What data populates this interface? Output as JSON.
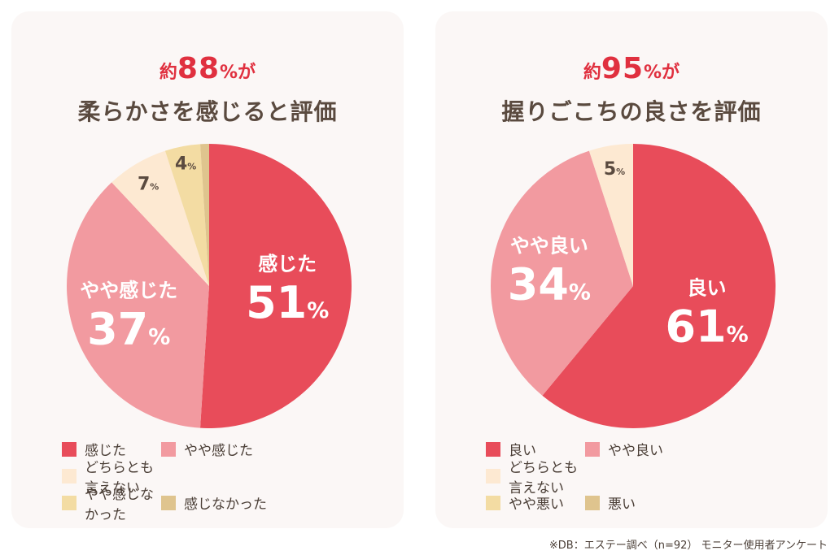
{
  "charts": [
    {
      "id": "left",
      "title_prefix": "約",
      "title_number": "88",
      "title_percent": "%",
      "title_suffix": "が",
      "subtitle": "柔らかさを感じると評価",
      "slice_labels": [
        "感じた",
        "やや感じた",
        "",
        "",
        ""
      ],
      "pct_labels": [
        "51%",
        "37%",
        "7%",
        "4%",
        ""
      ],
      "legend_rows": [
        [
          0,
          1
        ],
        [
          2
        ],
        [
          3,
          4
        ]
      ]
    },
    {
      "id": "right",
      "title_prefix": "約",
      "title_number": "95",
      "title_percent": "%",
      "title_suffix": "が",
      "subtitle": "握りごこちの良さを評価",
      "slice_labels": [
        "良い",
        "やや良い",
        "",
        "",
        ""
      ],
      "pct_labels": [
        "61%",
        "34%",
        "5%",
        "",
        ""
      ],
      "legend_rows": [
        [
          0,
          1
        ],
        [
          2
        ],
        [
          3,
          4
        ]
      ]
    }
  ],
  "chart_data": [
    {
      "type": "pie",
      "title": "約88%が 柔らかさを感じると評価",
      "categories": [
        "感じた",
        "やや感じた",
        "どちらとも言えない",
        "やや感じなかった",
        "感じなかった"
      ],
      "values": [
        51,
        37,
        7,
        4,
        1
      ],
      "colors": [
        "#e84c5a",
        "#f29aa0",
        "#fde9d2",
        "#f3dca3",
        "#dfc48e"
      ],
      "legend_position": "bottom"
    },
    {
      "type": "pie",
      "title": "約95%が 握りごこちの良さを評価",
      "categories": [
        "良い",
        "やや良い",
        "どちらとも言えない",
        "やや悪い",
        "悪い"
      ],
      "values": [
        61,
        34,
        5,
        0,
        0
      ],
      "colors": [
        "#e84c5a",
        "#f29aa0",
        "#fde9d2",
        "#f3dca3",
        "#dfc48e"
      ],
      "legend_position": "bottom"
    }
  ],
  "footnote": "※DB：エステー調べ（n=92） モニター使用者アンケート"
}
